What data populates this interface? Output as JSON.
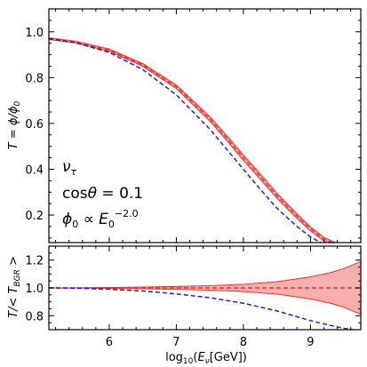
{
  "chart_data": [
    {
      "type": "line",
      "panel": "top",
      "ylabel": "T = ϕ/ϕ₀",
      "xlim": [
        5.1,
        9.75
      ],
      "ylim": [
        0.08,
        1.1
      ],
      "xticks": [
        "6",
        "7",
        "8",
        "9"
      ],
      "yticks": [
        "0.2",
        "0.4",
        "0.6",
        "0.8",
        "1.0"
      ],
      "annotation_lines": [
        "ν_τ",
        "cosθ = 0.1",
        "ϕ₀ ∝ E₀^−2.0"
      ],
      "x": [
        5.1,
        5.5,
        6.0,
        6.5,
        7.0,
        7.5,
        7.8,
        8.0,
        8.2,
        8.5,
        8.8,
        9.0,
        9.2,
        9.4,
        9.6,
        9.75
      ],
      "series": [
        {
          "style": "red-band-dashed",
          "color": "#e8322e",
          "values": [
            0.97,
            0.955,
            0.92,
            0.855,
            0.76,
            0.62,
            0.52,
            0.45,
            0.385,
            0.285,
            0.195,
            0.14,
            0.095,
            0.07,
            0.055,
            0.05
          ],
          "band_halfwidth": [
            0.004,
            0.004,
            0.005,
            0.006,
            0.008,
            0.01,
            0.011,
            0.012,
            0.012,
            0.011,
            0.01,
            0.009,
            0.008,
            0.006,
            0.005,
            0.004
          ]
        },
        {
          "style": "blue-dashed",
          "color": "#1f1fd0",
          "values": [
            0.97,
            0.952,
            0.91,
            0.835,
            0.725,
            0.575,
            0.47,
            0.4,
            0.33,
            0.23,
            0.15,
            0.105,
            0.072,
            0.055,
            0.044,
            0.04
          ]
        }
      ]
    },
    {
      "type": "line",
      "panel": "bottom",
      "xlabel": "log₁₀(E_ν[GeV])",
      "ylabel": "T/< T_BGR >",
      "xlim": [
        5.1,
        9.75
      ],
      "ylim": [
        0.7,
        1.3
      ],
      "xticks": [
        "6",
        "7",
        "8",
        "9"
      ],
      "yticks": [
        "0.8",
        "1.0",
        "1.2"
      ],
      "x": [
        5.1,
        5.5,
        6.0,
        6.5,
        7.0,
        7.5,
        8.0,
        8.5,
        9.0,
        9.3,
        9.5,
        9.75
      ],
      "series": [
        {
          "style": "red-band-dashed",
          "color": "#e8322e",
          "values": [
            1.0,
            1.0,
            1.0,
            1.0,
            1.0,
            1.0,
            1.0,
            1.0,
            1.0,
            1.0,
            1.0,
            1.0
          ],
          "band_halfwidth": [
            0.0,
            0.001,
            0.003,
            0.006,
            0.01,
            0.016,
            0.026,
            0.045,
            0.08,
            0.11,
            0.14,
            0.19
          ]
        },
        {
          "style": "blue-dashed",
          "color": "#1f1fd0",
          "values": [
            1.0,
            0.998,
            0.99,
            0.978,
            0.957,
            0.93,
            0.89,
            0.835,
            0.765,
            0.73,
            0.71,
            0.69
          ]
        }
      ]
    }
  ]
}
